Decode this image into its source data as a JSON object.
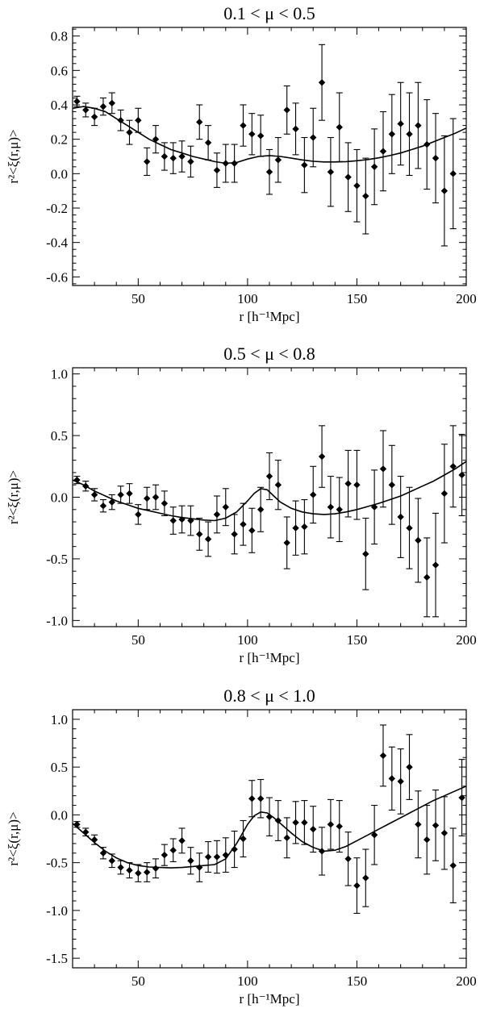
{
  "chart_data": [
    {
      "type": "scatter",
      "title": "0.1 < μ < 0.5",
      "xlabel": "r [h⁻¹Mpc]",
      "ylabel": "r²<ξ(r,μ)>",
      "xlim": [
        20,
        200
      ],
      "ylim": [
        -0.65,
        0.85
      ],
      "xticks": [
        50,
        100,
        150,
        200
      ],
      "xtick_labels": [
        "50",
        "100",
        "150",
        "200"
      ],
      "yticks": [
        -0.6,
        -0.4,
        -0.2,
        0.0,
        0.2,
        0.4,
        0.6,
        0.8
      ],
      "ytick_labels": [
        "-0.6",
        "-0.4",
        "-0.2",
        "0.0",
        "0.2",
        "0.4",
        "0.6",
        "0.8"
      ],
      "grid": false,
      "points": [
        {
          "x": 22,
          "y": 0.42,
          "err": 0.03
        },
        {
          "x": 26,
          "y": 0.37,
          "err": 0.04
        },
        {
          "x": 30,
          "y": 0.33,
          "err": 0.05
        },
        {
          "x": 34,
          "y": 0.39,
          "err": 0.05
        },
        {
          "x": 38,
          "y": 0.41,
          "err": 0.06
        },
        {
          "x": 42,
          "y": 0.31,
          "err": 0.06
        },
        {
          "x": 46,
          "y": 0.24,
          "err": 0.07
        },
        {
          "x": 50,
          "y": 0.31,
          "err": 0.07
        },
        {
          "x": 54,
          "y": 0.07,
          "err": 0.08
        },
        {
          "x": 58,
          "y": 0.2,
          "err": 0.08
        },
        {
          "x": 62,
          "y": 0.1,
          "err": 0.08
        },
        {
          "x": 66,
          "y": 0.09,
          "err": 0.09
        },
        {
          "x": 70,
          "y": 0.1,
          "err": 0.09
        },
        {
          "x": 74,
          "y": 0.07,
          "err": 0.09
        },
        {
          "x": 78,
          "y": 0.3,
          "err": 0.1
        },
        {
          "x": 82,
          "y": 0.18,
          "err": 0.1
        },
        {
          "x": 86,
          "y": 0.02,
          "err": 0.1
        },
        {
          "x": 90,
          "y": 0.06,
          "err": 0.11
        },
        {
          "x": 94,
          "y": 0.06,
          "err": 0.11
        },
        {
          "x": 98,
          "y": 0.28,
          "err": 0.12
        },
        {
          "x": 102,
          "y": 0.23,
          "err": 0.12
        },
        {
          "x": 106,
          "y": 0.22,
          "err": 0.12
        },
        {
          "x": 110,
          "y": 0.01,
          "err": 0.13
        },
        {
          "x": 114,
          "y": 0.08,
          "err": 0.13
        },
        {
          "x": 118,
          "y": 0.37,
          "err": 0.14
        },
        {
          "x": 122,
          "y": 0.26,
          "err": 0.15
        },
        {
          "x": 126,
          "y": 0.05,
          "err": 0.16
        },
        {
          "x": 130,
          "y": 0.21,
          "err": 0.17
        },
        {
          "x": 134,
          "y": 0.53,
          "err": 0.22
        },
        {
          "x": 138,
          "y": 0.01,
          "err": 0.2
        },
        {
          "x": 142,
          "y": 0.27,
          "err": 0.2
        },
        {
          "x": 146,
          "y": -0.02,
          "err": 0.2
        },
        {
          "x": 150,
          "y": -0.07,
          "err": 0.21
        },
        {
          "x": 154,
          "y": -0.13,
          "err": 0.22
        },
        {
          "x": 158,
          "y": 0.04,
          "err": 0.22
        },
        {
          "x": 162,
          "y": 0.13,
          "err": 0.23
        },
        {
          "x": 166,
          "y": 0.23,
          "err": 0.23
        },
        {
          "x": 170,
          "y": 0.29,
          "err": 0.24
        },
        {
          "x": 174,
          "y": 0.23,
          "err": 0.24
        },
        {
          "x": 178,
          "y": 0.28,
          "err": 0.25
        },
        {
          "x": 182,
          "y": 0.17,
          "err": 0.26
        },
        {
          "x": 186,
          "y": 0.09,
          "err": 0.26
        },
        {
          "x": 190,
          "y": -0.1,
          "err": 0.32
        },
        {
          "x": 194,
          "y": 0.0,
          "err": 0.32
        }
      ],
      "model_line": {
        "x": [
          20,
          25,
          30,
          35,
          40,
          45,
          50,
          55,
          60,
          65,
          70,
          75,
          80,
          85,
          90,
          95,
          100,
          105,
          110,
          115,
          120,
          125,
          130,
          135,
          140,
          145,
          150,
          155,
          160,
          165,
          170,
          175,
          180,
          185,
          190,
          195,
          200
        ],
        "y": [
          0.38,
          0.39,
          0.38,
          0.36,
          0.32,
          0.28,
          0.24,
          0.2,
          0.17,
          0.14,
          0.12,
          0.1,
          0.085,
          0.07,
          0.06,
          0.065,
          0.085,
          0.1,
          0.105,
          0.1,
          0.09,
          0.08,
          0.072,
          0.068,
          0.068,
          0.07,
          0.075,
          0.082,
          0.092,
          0.105,
          0.12,
          0.14,
          0.16,
          0.185,
          0.21,
          0.235,
          0.265
        ]
      }
    },
    {
      "type": "scatter",
      "title": "0.5 < μ < 0.8",
      "xlabel": "r [h⁻¹Mpc]",
      "ylabel": "r²<ξ(r,μ)>",
      "xlim": [
        20,
        200
      ],
      "ylim": [
        -1.05,
        1.05
      ],
      "xticks": [
        50,
        100,
        150,
        200
      ],
      "xtick_labels": [
        "50",
        "100",
        "150",
        "200"
      ],
      "yticks": [
        -1.0,
        -0.5,
        0.0,
        0.5,
        1.0
      ],
      "ytick_labels": [
        "-1.0",
        "-0.5",
        "0.0",
        "0.5",
        "1.0"
      ],
      "grid": false,
      "points": [
        {
          "x": 22,
          "y": 0.14,
          "err": 0.03
        },
        {
          "x": 26,
          "y": 0.09,
          "err": 0.04
        },
        {
          "x": 30,
          "y": 0.02,
          "err": 0.05
        },
        {
          "x": 34,
          "y": -0.07,
          "err": 0.05
        },
        {
          "x": 38,
          "y": -0.04,
          "err": 0.06
        },
        {
          "x": 42,
          "y": 0.02,
          "err": 0.07
        },
        {
          "x": 46,
          "y": 0.03,
          "err": 0.08
        },
        {
          "x": 50,
          "y": -0.14,
          "err": 0.08
        },
        {
          "x": 54,
          "y": -0.01,
          "err": 0.09
        },
        {
          "x": 58,
          "y": 0.0,
          "err": 0.1
        },
        {
          "x": 62,
          "y": -0.05,
          "err": 0.1
        },
        {
          "x": 66,
          "y": -0.19,
          "err": 0.11
        },
        {
          "x": 70,
          "y": -0.18,
          "err": 0.11
        },
        {
          "x": 74,
          "y": -0.19,
          "err": 0.12
        },
        {
          "x": 78,
          "y": -0.3,
          "err": 0.13
        },
        {
          "x": 82,
          "y": -0.34,
          "err": 0.14
        },
        {
          "x": 86,
          "y": -0.14,
          "err": 0.15
        },
        {
          "x": 90,
          "y": -0.08,
          "err": 0.15
        },
        {
          "x": 94,
          "y": -0.3,
          "err": 0.16
        },
        {
          "x": 98,
          "y": -0.22,
          "err": 0.17
        },
        {
          "x": 102,
          "y": -0.27,
          "err": 0.18
        },
        {
          "x": 106,
          "y": -0.1,
          "err": 0.18
        },
        {
          "x": 110,
          "y": 0.17,
          "err": 0.19
        },
        {
          "x": 114,
          "y": 0.1,
          "err": 0.2
        },
        {
          "x": 118,
          "y": -0.37,
          "err": 0.21
        },
        {
          "x": 122,
          "y": -0.25,
          "err": 0.22
        },
        {
          "x": 126,
          "y": -0.24,
          "err": 0.22
        },
        {
          "x": 130,
          "y": 0.02,
          "err": 0.23
        },
        {
          "x": 134,
          "y": 0.33,
          "err": 0.25
        },
        {
          "x": 138,
          "y": -0.08,
          "err": 0.25
        },
        {
          "x": 142,
          "y": -0.1,
          "err": 0.26
        },
        {
          "x": 146,
          "y": 0.11,
          "err": 0.27
        },
        {
          "x": 150,
          "y": 0.1,
          "err": 0.28
        },
        {
          "x": 154,
          "y": -0.46,
          "err": 0.29
        },
        {
          "x": 158,
          "y": -0.08,
          "err": 0.3
        },
        {
          "x": 162,
          "y": 0.23,
          "err": 0.31
        },
        {
          "x": 166,
          "y": 0.1,
          "err": 0.32
        },
        {
          "x": 170,
          "y": -0.16,
          "err": 0.33
        },
        {
          "x": 174,
          "y": -0.25,
          "err": 0.33
        },
        {
          "x": 178,
          "y": -0.35,
          "err": 0.34
        },
        {
          "x": 182,
          "y": -0.65,
          "err": 0.32
        },
        {
          "x": 186,
          "y": -0.55,
          "err": 0.42
        },
        {
          "x": 190,
          "y": 0.03,
          "err": 0.4
        },
        {
          "x": 194,
          "y": 0.25,
          "err": 0.33
        },
        {
          "x": 198,
          "y": 0.18,
          "err": 0.33
        }
      ],
      "model_line": {
        "x": [
          20,
          25,
          30,
          35,
          40,
          45,
          50,
          55,
          60,
          65,
          70,
          75,
          80,
          85,
          90,
          95,
          100,
          103,
          106,
          109,
          112,
          115,
          120,
          125,
          130,
          135,
          140,
          145,
          150,
          155,
          160,
          165,
          170,
          175,
          180,
          185,
          190,
          195,
          200
        ],
        "y": [
          0.14,
          0.1,
          0.05,
          0.01,
          -0.03,
          -0.06,
          -0.09,
          -0.11,
          -0.13,
          -0.15,
          -0.165,
          -0.175,
          -0.185,
          -0.19,
          -0.17,
          -0.12,
          -0.03,
          0.03,
          0.07,
          0.06,
          0.01,
          -0.04,
          -0.09,
          -0.12,
          -0.135,
          -0.14,
          -0.135,
          -0.12,
          -0.1,
          -0.075,
          -0.05,
          -0.02,
          0.01,
          0.05,
          0.09,
          0.13,
          0.18,
          0.23,
          0.29
        ]
      }
    },
    {
      "type": "scatter",
      "title": "0.8 < μ < 1.0",
      "xlabel": "r [h⁻¹Mpc]",
      "ylabel": "r²<ξ(r,μ)>",
      "xlim": [
        20,
        200
      ],
      "ylim": [
        -1.6,
        1.1
      ],
      "xticks": [
        50,
        100,
        150,
        200
      ],
      "xtick_labels": [
        "50",
        "100",
        "150",
        "200"
      ],
      "yticks": [
        -1.5,
        -1.0,
        -0.5,
        0.0,
        0.5,
        1.0
      ],
      "ytick_labels": [
        "-1.5",
        "-1.0",
        "-0.5",
        "0.0",
        "0.5",
        "1.0"
      ],
      "grid": false,
      "points": [
        {
          "x": 22,
          "y": -0.1,
          "err": 0.03
        },
        {
          "x": 26,
          "y": -0.18,
          "err": 0.04
        },
        {
          "x": 30,
          "y": -0.26,
          "err": 0.05
        },
        {
          "x": 34,
          "y": -0.4,
          "err": 0.06
        },
        {
          "x": 38,
          "y": -0.48,
          "err": 0.07
        },
        {
          "x": 42,
          "y": -0.55,
          "err": 0.07
        },
        {
          "x": 46,
          "y": -0.58,
          "err": 0.08
        },
        {
          "x": 50,
          "y": -0.61,
          "err": 0.09
        },
        {
          "x": 54,
          "y": -0.6,
          "err": 0.1
        },
        {
          "x": 58,
          "y": -0.56,
          "err": 0.1
        },
        {
          "x": 62,
          "y": -0.42,
          "err": 0.11
        },
        {
          "x": 66,
          "y": -0.37,
          "err": 0.12
        },
        {
          "x": 70,
          "y": -0.27,
          "err": 0.13
        },
        {
          "x": 74,
          "y": -0.48,
          "err": 0.14
        },
        {
          "x": 78,
          "y": -0.55,
          "err": 0.15
        },
        {
          "x": 82,
          "y": -0.44,
          "err": 0.16
        },
        {
          "x": 86,
          "y": -0.44,
          "err": 0.17
        },
        {
          "x": 90,
          "y": -0.42,
          "err": 0.18
        },
        {
          "x": 94,
          "y": -0.36,
          "err": 0.19
        },
        {
          "x": 98,
          "y": -0.25,
          "err": 0.19
        },
        {
          "x": 102,
          "y": 0.17,
          "err": 0.19
        },
        {
          "x": 106,
          "y": 0.17,
          "err": 0.2
        },
        {
          "x": 110,
          "y": -0.02,
          "err": 0.2
        },
        {
          "x": 114,
          "y": -0.06,
          "err": 0.21
        },
        {
          "x": 118,
          "y": -0.24,
          "err": 0.21
        },
        {
          "x": 122,
          "y": -0.08,
          "err": 0.22
        },
        {
          "x": 126,
          "y": -0.08,
          "err": 0.23
        },
        {
          "x": 130,
          "y": -0.15,
          "err": 0.24
        },
        {
          "x": 134,
          "y": -0.38,
          "err": 0.25
        },
        {
          "x": 138,
          "y": -0.1,
          "err": 0.26
        },
        {
          "x": 142,
          "y": -0.12,
          "err": 0.27
        },
        {
          "x": 146,
          "y": -0.46,
          "err": 0.28
        },
        {
          "x": 150,
          "y": -0.74,
          "err": 0.29
        },
        {
          "x": 154,
          "y": -0.66,
          "err": 0.3
        },
        {
          "x": 158,
          "y": -0.21,
          "err": 0.31
        },
        {
          "x": 162,
          "y": 0.62,
          "err": 0.32
        },
        {
          "x": 166,
          "y": 0.38,
          "err": 0.33
        },
        {
          "x": 170,
          "y": 0.35,
          "err": 0.34
        },
        {
          "x": 174,
          "y": 0.5,
          "err": 0.34
        },
        {
          "x": 178,
          "y": -0.1,
          "err": 0.35
        },
        {
          "x": 182,
          "y": -0.26,
          "err": 0.36
        },
        {
          "x": 186,
          "y": -0.11,
          "err": 0.37
        },
        {
          "x": 190,
          "y": -0.19,
          "err": 0.38
        },
        {
          "x": 194,
          "y": -0.53,
          "err": 0.39
        },
        {
          "x": 198,
          "y": 0.18,
          "err": 0.4
        }
      ],
      "model_line": {
        "x": [
          20,
          25,
          30,
          35,
          40,
          45,
          50,
          55,
          60,
          65,
          70,
          75,
          80,
          85,
          90,
          95,
          100,
          103,
          106,
          109,
          112,
          115,
          120,
          125,
          130,
          135,
          140,
          145,
          150,
          155,
          160,
          165,
          170,
          175,
          180,
          185,
          190,
          195,
          200
        ],
        "y": [
          -0.09,
          -0.19,
          -0.29,
          -0.38,
          -0.45,
          -0.5,
          -0.53,
          -0.545,
          -0.55,
          -0.555,
          -0.55,
          -0.54,
          -0.53,
          -0.52,
          -0.46,
          -0.3,
          -0.1,
          -0.01,
          0.03,
          0.02,
          -0.03,
          -0.09,
          -0.19,
          -0.28,
          -0.34,
          -0.38,
          -0.37,
          -0.33,
          -0.27,
          -0.21,
          -0.15,
          -0.09,
          -0.03,
          0.03,
          0.09,
          0.15,
          0.2,
          0.25,
          0.3
        ]
      }
    }
  ]
}
